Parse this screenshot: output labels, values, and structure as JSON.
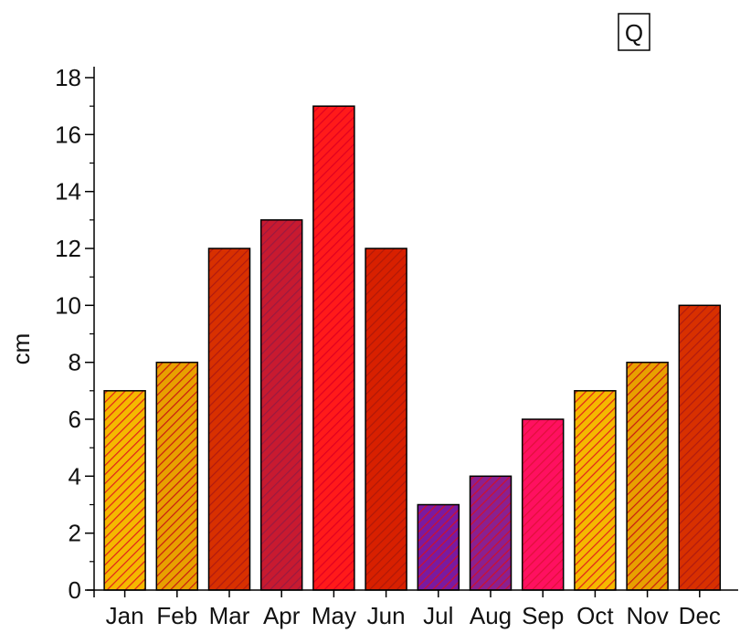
{
  "chart_data": {
    "type": "bar",
    "title": "",
    "xlabel": "",
    "ylabel": "cm",
    "ylim": [
      0,
      18
    ],
    "yticks": [
      0,
      2,
      4,
      6,
      8,
      10,
      12,
      14,
      16,
      18
    ],
    "grid": false,
    "categories": [
      "Jan",
      "Feb",
      "Mar",
      "Apr",
      "May",
      "Jun",
      "Jul",
      "Aug",
      "Sep",
      "Oct",
      "Nov",
      "Dec"
    ],
    "values": [
      7,
      8,
      12,
      13,
      17,
      12,
      3,
      4,
      6,
      7,
      8,
      10
    ],
    "bar_styles": [
      {
        "base": "#f5b800",
        "hatch": "#e0201a"
      },
      {
        "base": "#e8a000",
        "hatch": "#c81a10"
      },
      {
        "base": "#d83000",
        "hatch": "#b01a10"
      },
      {
        "base": "#c81a30",
        "hatch": "#9a1a40"
      },
      {
        "base": "#ff1a1a",
        "hatch": "#e00020"
      },
      {
        "base": "#d82000",
        "hatch": "#b01808"
      },
      {
        "base": "#7a1aa0",
        "hatch": "#d0102a"
      },
      {
        "base": "#8a2090",
        "hatch": "#d0102a"
      },
      {
        "base": "#ff1060",
        "hatch": "#e0103a"
      },
      {
        "base": "#f5b800",
        "hatch": "#e0201a"
      },
      {
        "base": "#e8a000",
        "hatch": "#c81a10"
      },
      {
        "base": "#d83000",
        "hatch": "#b01a10"
      }
    ],
    "legend": {
      "text": "Q",
      "placement": "top-right"
    }
  }
}
